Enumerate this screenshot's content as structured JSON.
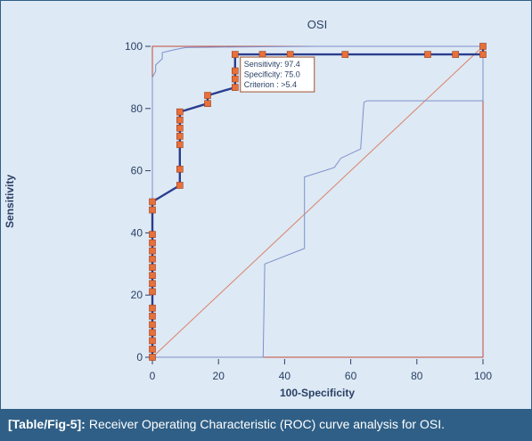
{
  "chart_data": {
    "type": "line",
    "title": "OSI",
    "xlabel": "100-Specificity",
    "ylabel": "Sensitivity",
    "xlim": [
      0,
      100
    ],
    "ylim": [
      0,
      100
    ],
    "xticks": [
      0,
      20,
      40,
      60,
      80,
      100
    ],
    "yticks": [
      0,
      20,
      40,
      60,
      80,
      100
    ],
    "grid": false,
    "colors": {
      "roc": "#2a3d8f",
      "marker": "#e8703a",
      "ci": "#7f90cc",
      "diagonal": "#d9826a",
      "axis": "#c04a3a",
      "text": "#2a3f66"
    },
    "series": [
      {
        "style": "roc-step",
        "x": [
          0,
          0,
          0,
          8.3,
          8.3,
          16.7,
          16.7,
          25,
          25,
          100,
          100
        ],
        "y": [
          0,
          47.4,
          50,
          55.3,
          78.9,
          81.6,
          84.2,
          86.8,
          97.4,
          97.4,
          100
        ]
      },
      {
        "style": "markers",
        "points": [
          [
            0,
            0
          ],
          [
            0,
            2.6
          ],
          [
            0,
            5.3
          ],
          [
            0,
            7.9
          ],
          [
            0,
            10.5
          ],
          [
            0,
            13.2
          ],
          [
            0,
            15.8
          ],
          [
            0,
            21.1
          ],
          [
            0,
            23.7
          ],
          [
            0,
            26.3
          ],
          [
            0,
            28.9
          ],
          [
            0,
            31.6
          ],
          [
            0,
            34.2
          ],
          [
            0,
            36.8
          ],
          [
            0,
            39.5
          ],
          [
            0,
            47.4
          ],
          [
            0,
            50
          ],
          [
            8.3,
            55.3
          ],
          [
            8.3,
            60.5
          ],
          [
            8.3,
            68.4
          ],
          [
            8.3,
            71.1
          ],
          [
            8.3,
            73.7
          ],
          [
            8.3,
            76.3
          ],
          [
            8.3,
            78.9
          ],
          [
            16.7,
            81.6
          ],
          [
            16.7,
            84.2
          ],
          [
            25,
            86.8
          ],
          [
            25,
            89.5
          ],
          [
            25,
            92.1
          ],
          [
            25,
            97.4
          ],
          [
            33.3,
            97.4
          ],
          [
            41.7,
            97.4
          ],
          [
            58.3,
            97.4
          ],
          [
            83.3,
            97.4
          ],
          [
            91.7,
            97.4
          ],
          [
            100,
            97.4
          ],
          [
            100,
            100
          ]
        ]
      },
      {
        "style": "ci-upper",
        "x": [
          0,
          0,
          1,
          1,
          3,
          3,
          7,
          10,
          25,
          50,
          100
        ],
        "y": [
          0,
          90,
          92,
          94,
          96,
          98,
          99,
          99.6,
          99.8,
          100,
          100
        ]
      },
      {
        "style": "ci-lower",
        "x": [
          0,
          33.5,
          34,
          46,
          46,
          55,
          57,
          63,
          64,
          65,
          100,
          100
        ],
        "y": [
          0,
          0,
          30,
          35,
          58,
          61,
          64,
          67,
          82,
          82.5,
          82.5,
          97.4
        ]
      },
      {
        "style": "diagonal",
        "x": [
          0,
          100
        ],
        "y": [
          0,
          100
        ]
      }
    ],
    "annotation": {
      "lines": [
        "Sensitivity: 97.4",
        "Specificity: 75.0",
        "Criterion : >5.4"
      ]
    }
  },
  "caption": {
    "label": "[Table/Fig-5]:",
    "text": "Receiver Operating Characteristic (ROC) curve analysis for OSI."
  }
}
